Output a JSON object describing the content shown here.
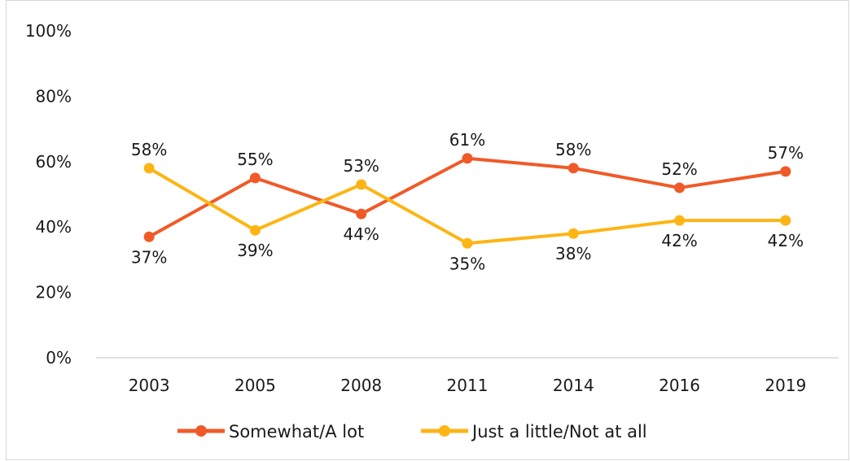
{
  "chart_data": {
    "type": "line",
    "categories": [
      "2003",
      "2005",
      "2008",
      "2011",
      "2014",
      "2016",
      "2019"
    ],
    "series": [
      {
        "name": "Somewhat/A lot",
        "color": "#F05A28",
        "values": [
          37,
          55,
          44,
          61,
          58,
          52,
          57
        ],
        "labels": [
          "37%",
          "55%",
          "44%",
          "61%",
          "58%",
          "52%",
          "57%"
        ]
      },
      {
        "name": "Just a little/Not at all",
        "color": "#FDB515",
        "values": [
          58,
          39,
          53,
          35,
          38,
          42,
          42
        ],
        "labels": [
          "58%",
          "39%",
          "53%",
          "35%",
          "38%",
          "42%",
          "42%"
        ]
      }
    ],
    "y_ticks": [
      "0%",
      "20%",
      "40%",
      "60%",
      "80%",
      "100%"
    ],
    "ylim": [
      0,
      100
    ],
    "grid": false,
    "legend": "bottom"
  }
}
